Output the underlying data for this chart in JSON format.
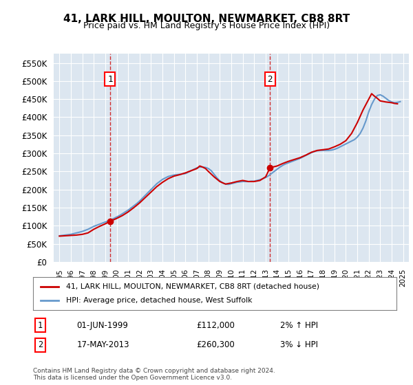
{
  "title": "41, LARK HILL, MOULTON, NEWMARKET, CB8 8RT",
  "subtitle": "Price paid vs. HM Land Registry's House Price Index (HPI)",
  "ylabel_ticks": [
    "£0",
    "£50K",
    "£100K",
    "£150K",
    "£200K",
    "£250K",
    "£300K",
    "£350K",
    "£400K",
    "£450K",
    "£500K",
    "£550K"
  ],
  "ytick_values": [
    0,
    50000,
    100000,
    150000,
    200000,
    250000,
    300000,
    350000,
    400000,
    450000,
    500000,
    550000
  ],
  "ylim": [
    0,
    575000
  ],
  "xlim_start": 1994.5,
  "xlim_end": 2025.5,
  "background_color": "#dce6f0",
  "plot_bg_color": "#dce6f0",
  "grid_color": "#ffffff",
  "line_color_red": "#cc0000",
  "line_color_blue": "#6699cc",
  "marker1_x": 1999.42,
  "marker1_y": 112000,
  "marker2_x": 2013.38,
  "marker2_y": 260300,
  "marker1_label": "1",
  "marker2_label": "2",
  "vline_color": "#cc0000",
  "annotation1_date": "01-JUN-1999",
  "annotation1_price": "£112,000",
  "annotation1_hpi": "2% ↑ HPI",
  "annotation2_date": "17-MAY-2013",
  "annotation2_price": "£260,300",
  "annotation2_hpi": "3% ↓ HPI",
  "legend_line1": "41, LARK HILL, MOULTON, NEWMARKET, CB8 8RT (detached house)",
  "legend_line2": "HPI: Average price, detached house, West Suffolk",
  "footer": "Contains HM Land Registry data © Crown copyright and database right 2024.\nThis data is licensed under the Open Government Licence v3.0.",
  "xtick_years": [
    1995,
    1996,
    1997,
    1998,
    1999,
    2000,
    2001,
    2002,
    2003,
    2004,
    2005,
    2006,
    2007,
    2008,
    2009,
    2010,
    2011,
    2012,
    2013,
    2014,
    2015,
    2016,
    2017,
    2018,
    2019,
    2020,
    2021,
    2022,
    2023,
    2024,
    2025
  ],
  "hpi_x": [
    1995,
    1995.25,
    1995.5,
    1995.75,
    1996,
    1996.25,
    1996.5,
    1996.75,
    1997,
    1997.25,
    1997.5,
    1997.75,
    1998,
    1998.25,
    1998.5,
    1998.75,
    1999,
    1999.25,
    1999.5,
    1999.75,
    2000,
    2000.25,
    2000.5,
    2000.75,
    2001,
    2001.25,
    2001.5,
    2001.75,
    2002,
    2002.25,
    2002.5,
    2002.75,
    2003,
    2003.25,
    2003.5,
    2003.75,
    2004,
    2004.25,
    2004.5,
    2004.75,
    2005,
    2005.25,
    2005.5,
    2005.75,
    2006,
    2006.25,
    2006.5,
    2006.75,
    2007,
    2007.25,
    2007.5,
    2007.75,
    2008,
    2008.25,
    2008.5,
    2008.75,
    2009,
    2009.25,
    2009.5,
    2009.75,
    2010,
    2010.25,
    2010.5,
    2010.75,
    2011,
    2011.25,
    2011.5,
    2011.75,
    2012,
    2012.25,
    2012.5,
    2012.75,
    2013,
    2013.25,
    2013.5,
    2013.75,
    2014,
    2014.25,
    2014.5,
    2014.75,
    2015,
    2015.25,
    2015.5,
    2015.75,
    2016,
    2016.25,
    2016.5,
    2016.75,
    2017,
    2017.25,
    2017.5,
    2017.75,
    2018,
    2018.25,
    2018.5,
    2018.75,
    2019,
    2019.25,
    2019.5,
    2019.75,
    2020,
    2020.25,
    2020.5,
    2020.75,
    2021,
    2021.25,
    2021.5,
    2021.75,
    2022,
    2022.25,
    2022.5,
    2022.75,
    2023,
    2023.25,
    2023.5,
    2023.75,
    2024,
    2024.25,
    2024.5,
    2024.75
  ],
  "hpi_y": [
    72000,
    73000,
    74000,
    75000,
    76000,
    78000,
    80000,
    82000,
    84000,
    87000,
    90000,
    94000,
    98000,
    101000,
    104000,
    107000,
    110000,
    113000,
    116000,
    120000,
    124000,
    128000,
    133000,
    138000,
    143000,
    149000,
    155000,
    161000,
    168000,
    176000,
    184000,
    192000,
    200000,
    208000,
    216000,
    222000,
    228000,
    232000,
    236000,
    238000,
    240000,
    241000,
    242000,
    243000,
    244000,
    248000,
    252000,
    256000,
    260000,
    262000,
    262000,
    261000,
    258000,
    252000,
    242000,
    232000,
    224000,
    218000,
    215000,
    214000,
    216000,
    218000,
    220000,
    221000,
    222000,
    222000,
    222000,
    223000,
    223000,
    225000,
    227000,
    230000,
    233000,
    238000,
    244000,
    250000,
    256000,
    262000,
    267000,
    271000,
    274000,
    277000,
    280000,
    283000,
    286000,
    290000,
    294000,
    298000,
    302000,
    305000,
    307000,
    308000,
    308000,
    308000,
    308000,
    309000,
    311000,
    314000,
    318000,
    322000,
    326000,
    330000,
    334000,
    338000,
    345000,
    355000,
    370000,
    390000,
    415000,
    435000,
    450000,
    460000,
    462000,
    458000,
    452000,
    446000,
    442000,
    440000,
    441000,
    443000
  ],
  "red_x": [
    1995,
    1995.5,
    1996,
    1996.5,
    1997,
    1997.5,
    1998,
    1998.5,
    1999,
    1999.42,
    2000,
    2000.5,
    2001,
    2001.5,
    2002,
    2002.5,
    2003,
    2003.5,
    2004,
    2004.5,
    2005,
    2005.5,
    2006,
    2006.5,
    2007,
    2007.25,
    2007.5,
    2007.75,
    2008,
    2008.5,
    2009,
    2009.5,
    2010,
    2010.5,
    2011,
    2011.5,
    2012,
    2012.5,
    2013,
    2013.38,
    2014,
    2014.5,
    2015,
    2015.5,
    2016,
    2016.5,
    2017,
    2017.5,
    2018,
    2018.5,
    2019,
    2019.5,
    2020,
    2020.5,
    2021,
    2021.5,
    2022,
    2022.25,
    2022.5,
    2022.75,
    2023,
    2023.5,
    2024,
    2024.25,
    2024.5
  ],
  "red_y": [
    71000,
    72000,
    73000,
    74000,
    76000,
    80000,
    90000,
    98000,
    105000,
    112000,
    120000,
    128000,
    138000,
    150000,
    163000,
    178000,
    193000,
    208000,
    220000,
    230000,
    237000,
    241000,
    246000,
    252000,
    258000,
    265000,
    262000,
    258000,
    250000,
    235000,
    222000,
    215000,
    218000,
    222000,
    225000,
    222000,
    222000,
    225000,
    235000,
    260300,
    265000,
    272000,
    278000,
    283000,
    288000,
    295000,
    303000,
    308000,
    310000,
    312000,
    318000,
    325000,
    335000,
    355000,
    385000,
    420000,
    450000,
    465000,
    458000,
    452000,
    445000,
    442000,
    440000,
    438000,
    437000
  ]
}
